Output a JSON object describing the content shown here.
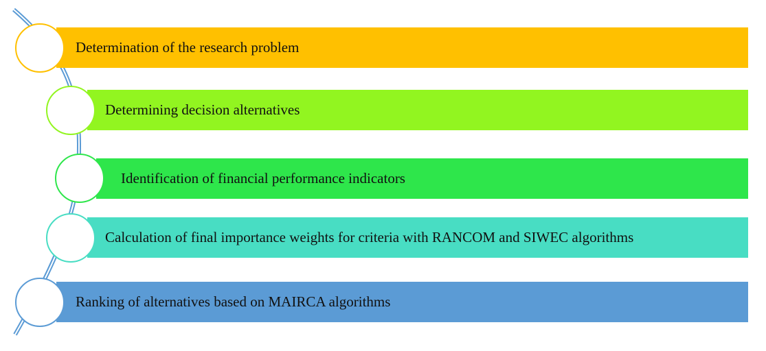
{
  "steps": [
    {
      "label": "Determination of the research problem",
      "color": "#FFC000"
    },
    {
      "label": "Determining decision alternatives",
      "color": "#92F520"
    },
    {
      "label": "Identification of financial performance indicators",
      "color": "#2EE64B"
    },
    {
      "label": "Calculation of final importance weights for criteria with RANCOM and SIWEC algorithms",
      "color": "#48DDC3"
    },
    {
      "label": "Ranking of alternatives based on MAIRCA algorithms",
      "color": "#5B9BD5"
    }
  ],
  "spine_color": "#5B9BD5"
}
